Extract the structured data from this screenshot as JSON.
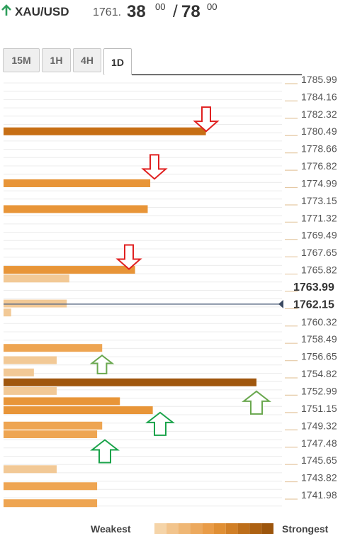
{
  "header": {
    "symbol": "XAU/USD",
    "price_main": "1761.",
    "price_big1": "38",
    "price_sup1": "00",
    "separator": "/",
    "price_big2": "78",
    "price_sup2": "00",
    "arrow_icon": "up-arrow-icon",
    "arrow_color": "#2e9e5b"
  },
  "tabs": [
    {
      "label": "15M",
      "active": false
    },
    {
      "label": "1H",
      "active": false
    },
    {
      "label": "4H",
      "active": false
    },
    {
      "label": "1D",
      "active": true
    }
  ],
  "chart_data": {
    "type": "bar",
    "orientation": "horizontal",
    "y_ticks": [
      "1785.99",
      "1784.16",
      "1782.32",
      "1780.49",
      "1778.66",
      "1776.82",
      "1774.99",
      "1773.15",
      "1771.32",
      "1769.49",
      "1767.65",
      "1765.82",
      "1763.99",
      "1762.15",
      "1760.32",
      "1758.49",
      "1756.65",
      "1754.82",
      "1752.99",
      "1751.15",
      "1749.32",
      "1747.48",
      "1745.65",
      "1743.82",
      "1741.98"
    ],
    "bold_ticks": [
      "1763.99",
      "1762.15"
    ],
    "current_price_line": 1762.15,
    "bars": [
      {
        "level": 1780.49,
        "strength": 0.8
      },
      {
        "level": 1774.99,
        "strength": 0.58
      },
      {
        "level": 1772.25,
        "strength": 0.57
      },
      {
        "level": 1765.82,
        "strength": 0.52
      },
      {
        "level": 1764.9,
        "strength": 0.26
      },
      {
        "level": 1762.25,
        "strength": 0.25
      },
      {
        "level": 1761.3,
        "strength": 0.03
      },
      {
        "level": 1757.55,
        "strength": 0.39
      },
      {
        "level": 1756.25,
        "strength": 0.21
      },
      {
        "level": 1754.95,
        "strength": 0.12
      },
      {
        "level": 1753.9,
        "strength": 1.0
      },
      {
        "level": 1752.99,
        "strength": 0.21
      },
      {
        "level": 1751.9,
        "strength": 0.46
      },
      {
        "level": 1750.95,
        "strength": 0.59
      },
      {
        "level": 1749.32,
        "strength": 0.39
      },
      {
        "level": 1748.4,
        "strength": 0.37
      },
      {
        "level": 1744.7,
        "strength": 0.21
      },
      {
        "level": 1742.9,
        "strength": 0.37
      },
      {
        "level": 1741.1,
        "strength": 0.37
      }
    ],
    "resistance_arrows": [
      1781.4,
      1776.35,
      1766.8
    ],
    "support_arrows": [
      1755.85,
      1752.05,
      1749.8,
      1746.9
    ],
    "colors": {
      "strong": "#a0570e",
      "mid": "#e89538",
      "weak": "#f2c996",
      "resistance_arrow": "#e02020",
      "support_small_arrow": "#6aa84f",
      "support_arrow": "#1aa34a"
    },
    "legend": {
      "weakest_label": "Weakest",
      "strongest_label": "Strongest",
      "steps": [
        "#f5d4a8",
        "#f2c48c",
        "#efb775",
        "#eca95e",
        "#e99c48",
        "#e08f34",
        "#d17f26",
        "#bd6e1a",
        "#ad6112",
        "#9c550c"
      ]
    }
  }
}
